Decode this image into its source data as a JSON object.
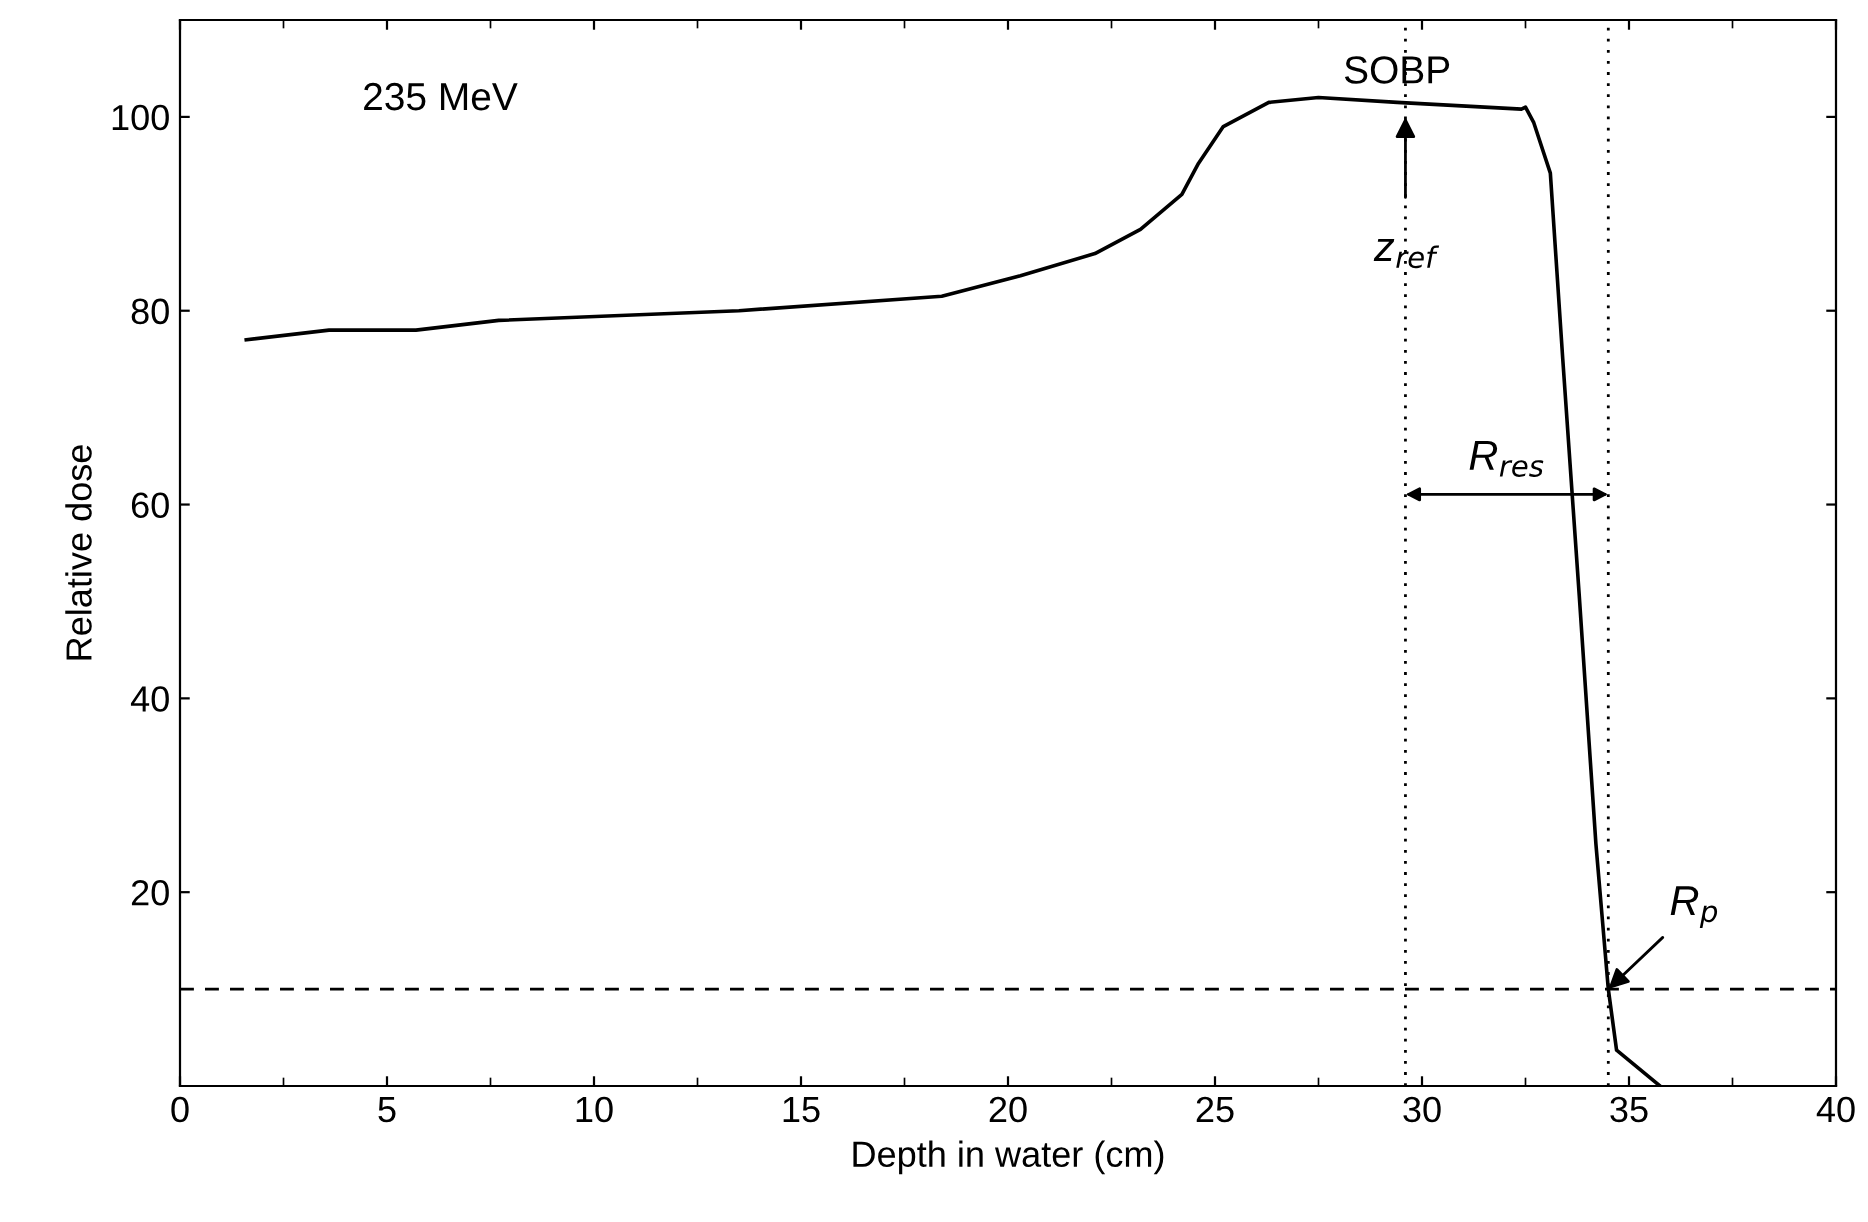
{
  "chart_data": {
    "type": "line",
    "xlabel": "Depth in water (cm)",
    "ylabel": "Relative dose",
    "xlim": [
      0,
      40
    ],
    "ylim": [
      0,
      110
    ],
    "xticks": [
      0,
      5,
      10,
      15,
      20,
      25,
      30,
      35,
      40
    ],
    "yticks": [
      20,
      40,
      60,
      80,
      100
    ],
    "grid": false,
    "series": [
      {
        "color": "#000000",
        "x": [
          1.6,
          3.6,
          5.7,
          7.7,
          13.5,
          18.4,
          20.3,
          22.1,
          23.2,
          24.2,
          24.6,
          25.2,
          26.3,
          27.5,
          29.4,
          32.4,
          32.5,
          32.7,
          33.1,
          33.4,
          33.8,
          34.2,
          34.5,
          34.7,
          35.75
        ],
        "values": [
          77,
          78,
          78,
          79,
          80,
          81.5,
          83.6,
          85.9,
          88.4,
          92,
          95.2,
          99,
          101.5,
          102,
          101.5,
          100.8,
          101,
          99.4,
          94.2,
          75,
          50.5,
          25,
          10,
          3.7,
          0
        ]
      }
    ],
    "ref_lines": [
      {
        "axis": "y",
        "value": 10,
        "line_style": "dashed"
      },
      {
        "axis": "x",
        "value": 29.6,
        "line_style": "dotted"
      },
      {
        "axis": "x",
        "value": 34.5,
        "line_style": "dotted"
      }
    ],
    "annotations": [
      "235 MeV",
      "SOBP",
      {
        "text": "z$_{ref}$",
        "x": 29.6,
        "y": 100
      },
      "R$_{res}$",
      {
        "text": "R$_{p}$",
        "x": 34.5,
        "y": 10
      }
    ]
  }
}
